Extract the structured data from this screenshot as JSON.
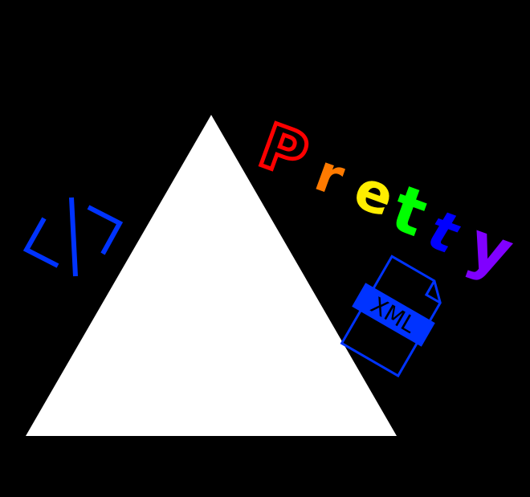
{
  "logo": {
    "word": "Pretty",
    "letters": [
      {
        "char": "P",
        "color": "#ff0000"
      },
      {
        "char": "r",
        "color": "#ff7a00"
      },
      {
        "char": "e",
        "color": "#ffee00"
      },
      {
        "char": "t",
        "color": "#00ff00"
      },
      {
        "char": "t",
        "color": "#0000ff"
      },
      {
        "char": "y",
        "color": "#8000ff"
      }
    ],
    "triangle_color": "#ffffff",
    "background_color": "#000000"
  },
  "code_icon": {
    "icon": "code-brackets-icon",
    "color": "#0033ff"
  },
  "xml_file_icon": {
    "icon": "xml-file-icon",
    "label": "XML",
    "color": "#0033ff"
  }
}
